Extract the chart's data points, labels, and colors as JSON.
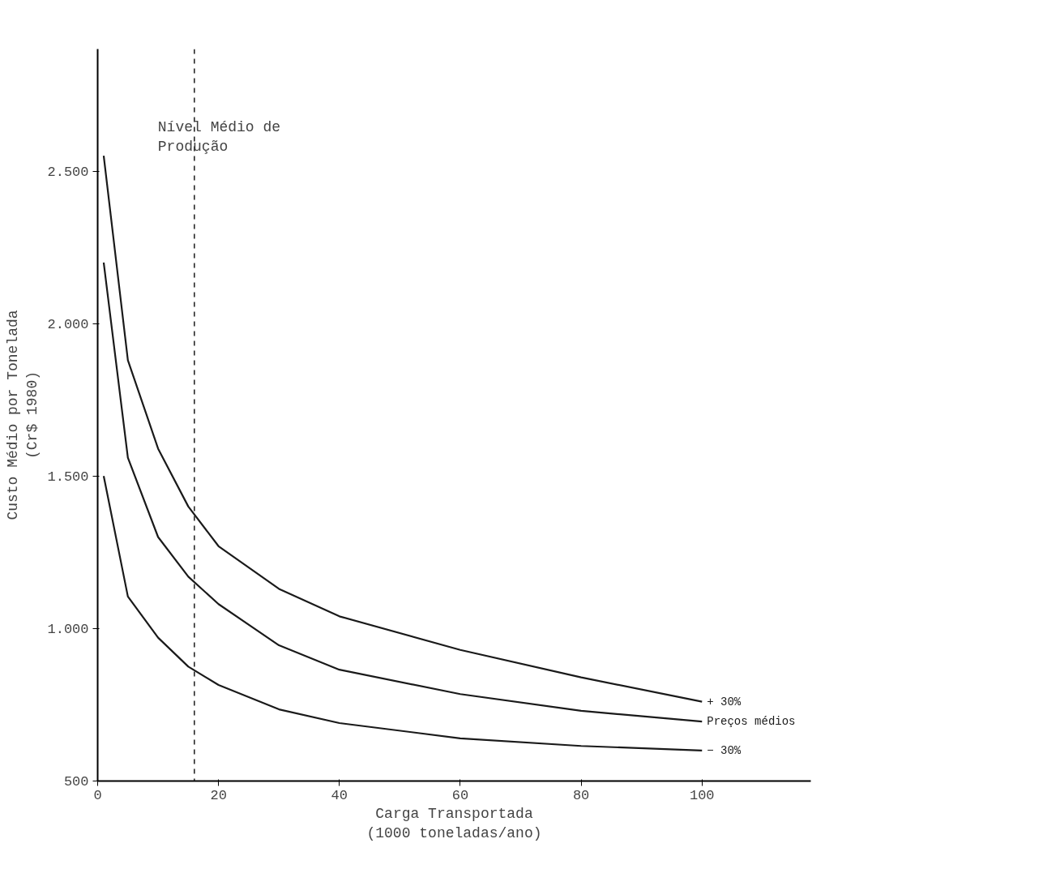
{
  "chart_data": {
    "type": "line",
    "xlabel": "Carga Transportada\n(1000 toneladas/ano)",
    "ylabel": "Custo Médio por Tonelada\n(Cr$ 1980)",
    "x": [
      1,
      5,
      10,
      15,
      20,
      30,
      40,
      60,
      80,
      100
    ],
    "series": [
      {
        "name": "+ 30%",
        "color": "#1a1a1a",
        "values": [
          2550,
          1880,
          1590,
          1400,
          1270,
          1130,
          1040,
          930,
          840,
          760
        ]
      },
      {
        "name": "Preços médios",
        "color": "#1a1a1a",
        "values": [
          2200,
          1560,
          1300,
          1170,
          1080,
          945,
          865,
          785,
          730,
          695
        ]
      },
      {
        "name": "− 30%",
        "color": "#1a1a1a",
        "values": [
          1500,
          1105,
          970,
          875,
          815,
          735,
          690,
          640,
          615,
          600
        ]
      }
    ],
    "xlim": [
      0,
      118
    ],
    "ylim": [
      500,
      2900
    ],
    "xticks": [
      0,
      20,
      40,
      60,
      80,
      100
    ],
    "yticks": [
      500,
      {
        "value": 1000,
        "label": "1.000"
      },
      {
        "value": 1500,
        "label": "1.500"
      },
      {
        "value": 2000,
        "label": "2.000"
      },
      {
        "value": 2500,
        "label": "2.500"
      }
    ],
    "ref_lines": [
      {
        "axis": "x",
        "value": 16,
        "label": "Nível Médio de\nProdução",
        "line_style": "dashed"
      }
    ],
    "line_style": "solid",
    "marker": "none",
    "grid": false
  }
}
